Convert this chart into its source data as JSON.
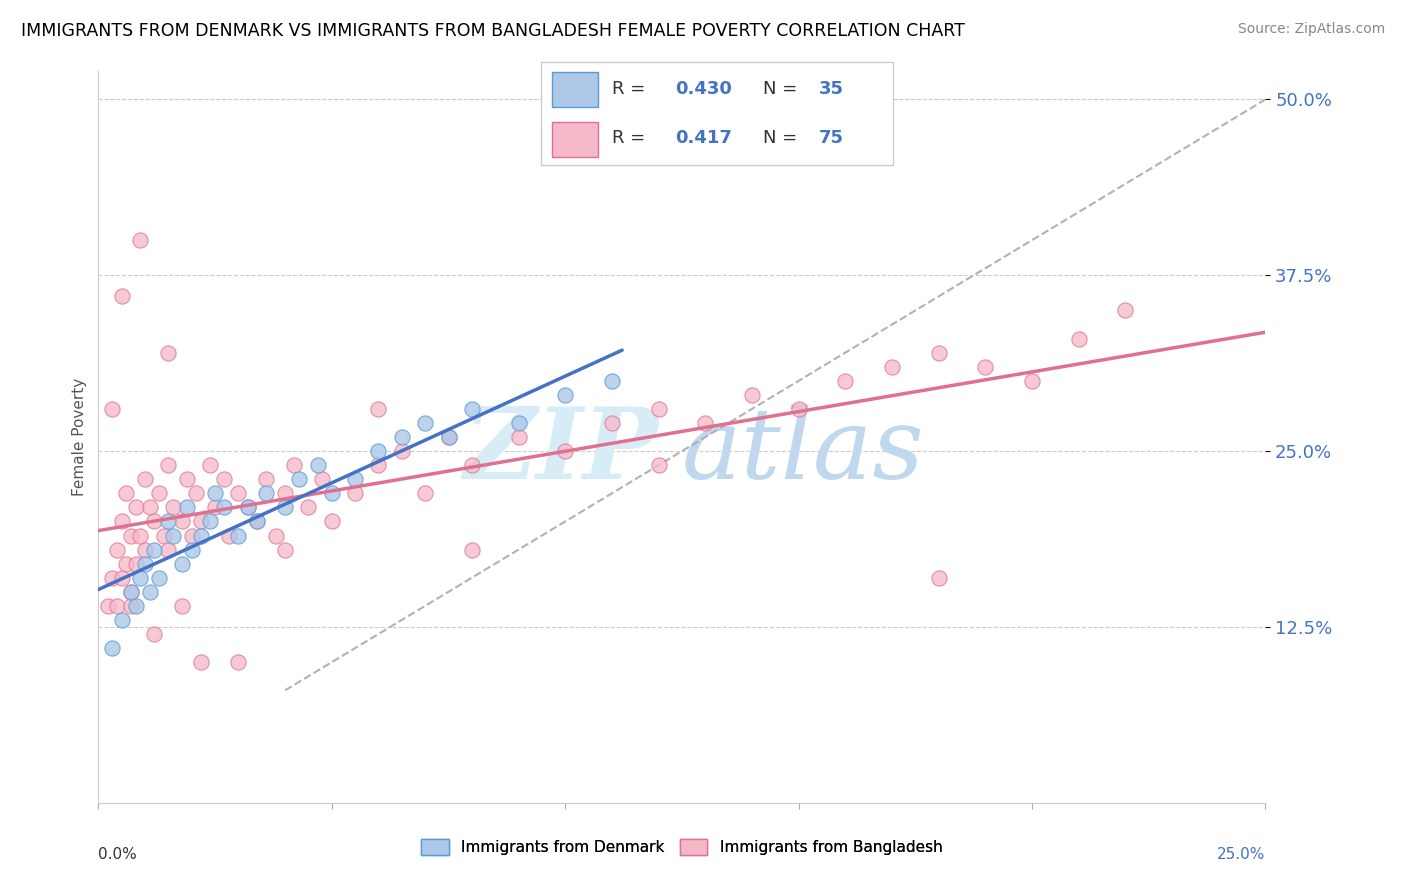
{
  "title": "IMMIGRANTS FROM DENMARK VS IMMIGRANTS FROM BANGLADESH FEMALE POVERTY CORRELATION CHART",
  "source": "Source: ZipAtlas.com",
  "denmark_color": "#adc8e8",
  "denmark_edge_color": "#5b9bd5",
  "denmark_line_color": "#4472c4",
  "bangladesh_color": "#f5b8c8",
  "bangladesh_edge_color": "#e07090",
  "bangladesh_line_color": "#e07090",
  "watermark_zip_color": "#d5e8f5",
  "watermark_atlas_color": "#b8d0e8",
  "grid_color": "#cccccc",
  "xlim": [
    0.0,
    0.25
  ],
  "ylim": [
    0.0,
    0.52
  ],
  "ylabel_ticks": [
    0.125,
    0.25,
    0.375,
    0.5
  ],
  "ylabel_labels": [
    "12.5%",
    "25.0%",
    "37.5%",
    "50.0%"
  ],
  "denmark_R": 0.43,
  "denmark_N": 35,
  "bangladesh_R": 0.417,
  "bangladesh_N": 75,
  "dk_x": [
    0.003,
    0.005,
    0.007,
    0.008,
    0.009,
    0.01,
    0.011,
    0.012,
    0.013,
    0.015,
    0.016,
    0.018,
    0.019,
    0.02,
    0.022,
    0.024,
    0.025,
    0.027,
    0.03,
    0.032,
    0.034,
    0.036,
    0.04,
    0.043,
    0.047,
    0.05,
    0.055,
    0.06,
    0.065,
    0.07,
    0.075,
    0.08,
    0.09,
    0.1,
    0.11
  ],
  "dk_y": [
    0.11,
    0.13,
    0.15,
    0.14,
    0.16,
    0.17,
    0.15,
    0.18,
    0.16,
    0.2,
    0.19,
    0.17,
    0.21,
    0.18,
    0.19,
    0.2,
    0.22,
    0.21,
    0.19,
    0.21,
    0.2,
    0.22,
    0.21,
    0.23,
    0.24,
    0.22,
    0.23,
    0.25,
    0.26,
    0.27,
    0.26,
    0.28,
    0.27,
    0.29,
    0.3
  ],
  "bd_x": [
    0.002,
    0.003,
    0.004,
    0.004,
    0.005,
    0.005,
    0.006,
    0.006,
    0.007,
    0.007,
    0.008,
    0.008,
    0.009,
    0.01,
    0.01,
    0.011,
    0.012,
    0.013,
    0.014,
    0.015,
    0.015,
    0.016,
    0.018,
    0.019,
    0.02,
    0.021,
    0.022,
    0.024,
    0.025,
    0.027,
    0.028,
    0.03,
    0.032,
    0.034,
    0.036,
    0.038,
    0.04,
    0.042,
    0.045,
    0.048,
    0.05,
    0.055,
    0.06,
    0.065,
    0.07,
    0.075,
    0.08,
    0.09,
    0.1,
    0.11,
    0.12,
    0.13,
    0.14,
    0.15,
    0.16,
    0.17,
    0.18,
    0.19,
    0.2,
    0.21,
    0.22,
    0.003,
    0.005,
    0.007,
    0.009,
    0.012,
    0.015,
    0.018,
    0.022,
    0.03,
    0.04,
    0.06,
    0.08,
    0.12,
    0.18
  ],
  "bd_y": [
    0.14,
    0.16,
    0.18,
    0.14,
    0.2,
    0.16,
    0.22,
    0.17,
    0.19,
    0.15,
    0.21,
    0.17,
    0.19,
    0.23,
    0.18,
    0.21,
    0.2,
    0.22,
    0.19,
    0.24,
    0.18,
    0.21,
    0.2,
    0.23,
    0.19,
    0.22,
    0.2,
    0.24,
    0.21,
    0.23,
    0.19,
    0.22,
    0.21,
    0.2,
    0.23,
    0.19,
    0.22,
    0.24,
    0.21,
    0.23,
    0.2,
    0.22,
    0.24,
    0.25,
    0.22,
    0.26,
    0.24,
    0.26,
    0.25,
    0.27,
    0.28,
    0.27,
    0.29,
    0.28,
    0.3,
    0.31,
    0.32,
    0.31,
    0.3,
    0.33,
    0.35,
    0.28,
    0.36,
    0.14,
    0.4,
    0.12,
    0.32,
    0.14,
    0.1,
    0.1,
    0.18,
    0.28,
    0.18,
    0.24,
    0.16
  ]
}
